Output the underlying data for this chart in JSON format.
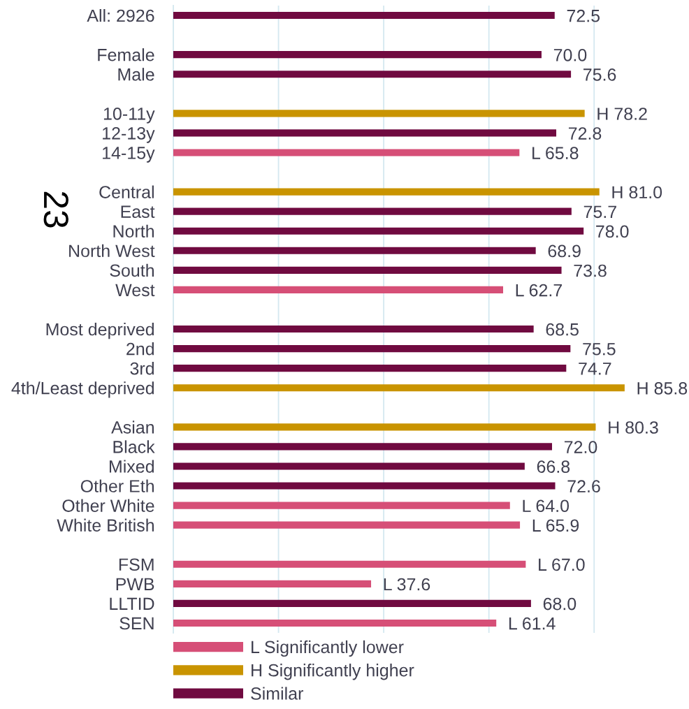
{
  "chart_data": {
    "type": "bar",
    "orientation": "horizontal",
    "stacked": true,
    "categories": [
      "All: 2926",
      null,
      "Female",
      "Male",
      null,
      "10-11y",
      "12-13y",
      "14-15y",
      null,
      "Central",
      "East",
      "North",
      "North West",
      "South",
      "West",
      null,
      "Most deprived",
      "2nd",
      "3rd",
      "4th/Least deprived",
      null,
      "Asian",
      "Black",
      "Mixed",
      "Other Eth",
      "Other White",
      "White British",
      null,
      "FSM",
      "PWB",
      "LLTID",
      "SEN"
    ],
    "series": [
      {
        "name": "L Significantly lower",
        "color": "#d64f77",
        "values": [
          null,
          null,
          null,
          null,
          null,
          null,
          null,
          65.8,
          null,
          null,
          null,
          null,
          null,
          null,
          62.7,
          null,
          null,
          null,
          null,
          null,
          null,
          null,
          null,
          null,
          null,
          64.0,
          65.9,
          null,
          67.0,
          37.6,
          null,
          61.4
        ],
        "value_labels": [
          null,
          null,
          null,
          null,
          null,
          null,
          null,
          "L 65.8",
          null,
          null,
          null,
          null,
          null,
          null,
          "L 62.7",
          null,
          null,
          null,
          null,
          null,
          null,
          null,
          null,
          null,
          null,
          "L 64.0",
          "L 65.9",
          null,
          "L 67.0",
          "L 37.6",
          null,
          "L 61.4"
        ]
      },
      {
        "name": "H Significantly higher",
        "color": "#c99400",
        "values": [
          null,
          null,
          null,
          null,
          null,
          78.2,
          null,
          null,
          null,
          81.0,
          null,
          null,
          null,
          null,
          null,
          null,
          null,
          null,
          null,
          85.8,
          null,
          80.3,
          null,
          null,
          null,
          null,
          null,
          null,
          null,
          null,
          null,
          null
        ],
        "value_labels": [
          null,
          null,
          null,
          null,
          null,
          "H 78.2",
          null,
          null,
          null,
          "H 81.0",
          null,
          null,
          null,
          null,
          null,
          null,
          null,
          null,
          null,
          "H 85.8",
          null,
          "H 80.3",
          null,
          null,
          null,
          null,
          null,
          null,
          null,
          null,
          null,
          null
        ]
      },
      {
        "name": "Similar",
        "color": "#700a40",
        "values": [
          72.5,
          null,
          70.0,
          75.6,
          null,
          null,
          72.8,
          null,
          null,
          null,
          75.7,
          78.0,
          68.9,
          73.8,
          null,
          null,
          68.5,
          75.5,
          74.7,
          null,
          null,
          null,
          72.0,
          66.8,
          72.6,
          null,
          null,
          null,
          null,
          null,
          68.0,
          null
        ],
        "value_labels": [
          "72.5",
          null,
          "70.0",
          "75.6",
          null,
          null,
          "72.8",
          null,
          null,
          null,
          "75.7",
          "78.0",
          "68.9",
          "73.8",
          null,
          null,
          "68.5",
          "75.5",
          "74.7",
          null,
          null,
          null,
          "72.0",
          "66.8",
          "72.6",
          null,
          null,
          null,
          null,
          null,
          "68.0",
          null
        ]
      }
    ],
    "xticks": [
      {
        "value": 0,
        "label": null
      },
      {
        "value": 20,
        "label": null
      },
      {
        "value": 40,
        "label": null
      },
      {
        "value": 60,
        "label": null
      },
      {
        "value": 80,
        "label": null
      }
    ],
    "tick_labels": "y",
    "grid": "x",
    "legend": "bottom",
    "annotations": [
      "23"
    ]
  }
}
